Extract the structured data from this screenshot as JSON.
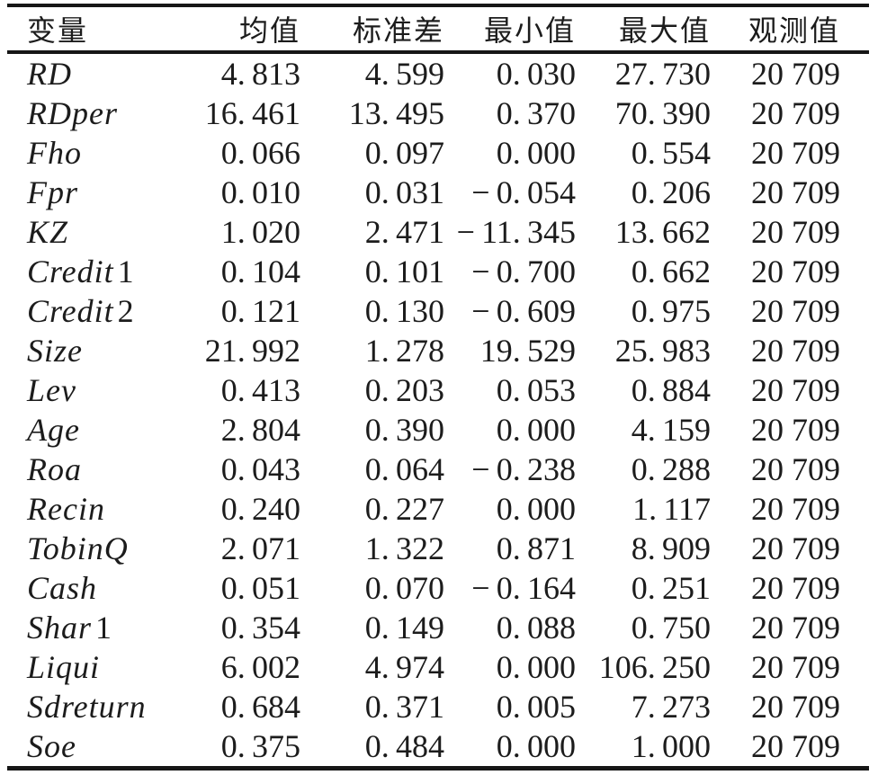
{
  "table": {
    "columns": [
      {
        "key": "variable",
        "label": "变量"
      },
      {
        "key": "mean",
        "label": "均值"
      },
      {
        "key": "std",
        "label": "标准差"
      },
      {
        "key": "min",
        "label": "最小值"
      },
      {
        "key": "max",
        "label": "最大值"
      },
      {
        "key": "obs",
        "label": "观测值"
      }
    ],
    "rows": [
      {
        "variable": "RD",
        "mean": "4.813",
        "std": "4.599",
        "min": "0.030",
        "max": "27.730",
        "obs": "20 709"
      },
      {
        "variable": "RDper",
        "mean": "16.461",
        "std": "13.495",
        "min": "0.370",
        "max": "70.390",
        "obs": "20 709"
      },
      {
        "variable": "Fho",
        "mean": "0.066",
        "std": "0.097",
        "min": "0.000",
        "max": "0.554",
        "obs": "20 709"
      },
      {
        "variable": "Fpr",
        "mean": "0.010",
        "std": "0.031",
        "min": "-0.054",
        "max": "0.206",
        "obs": "20 709"
      },
      {
        "variable": "KZ",
        "mean": "1.020",
        "std": "2.471",
        "min": "-11.345",
        "max": "13.662",
        "obs": "20 709"
      },
      {
        "variable": "Credit1",
        "mean": "0.104",
        "std": "0.101",
        "min": "-0.700",
        "max": "0.662",
        "obs": "20 709"
      },
      {
        "variable": "Credit2",
        "mean": "0.121",
        "std": "0.130",
        "min": "-0.609",
        "max": "0.975",
        "obs": "20 709"
      },
      {
        "variable": "Size",
        "mean": "21.992",
        "std": "1.278",
        "min": "19.529",
        "max": "25.983",
        "obs": "20 709"
      },
      {
        "variable": "Lev",
        "mean": "0.413",
        "std": "0.203",
        "min": "0.053",
        "max": "0.884",
        "obs": "20 709"
      },
      {
        "variable": "Age",
        "mean": "2.804",
        "std": "0.390",
        "min": "0.000",
        "max": "4.159",
        "obs": "20 709"
      },
      {
        "variable": "Roa",
        "mean": "0.043",
        "std": "0.064",
        "min": "-0.238",
        "max": "0.288",
        "obs": "20 709"
      },
      {
        "variable": "Recin",
        "mean": "0.240",
        "std": "0.227",
        "min": "0.000",
        "max": "1.117",
        "obs": "20 709"
      },
      {
        "variable": "TobinQ",
        "mean": "2.071",
        "std": "1.322",
        "min": "0.871",
        "max": "8.909",
        "obs": "20 709"
      },
      {
        "variable": "Cash",
        "mean": "0.051",
        "std": "0.070",
        "min": "-0.164",
        "max": "0.251",
        "obs": "20 709"
      },
      {
        "variable": "Shar1",
        "mean": "0.354",
        "std": "0.149",
        "min": "0.088",
        "max": "0.750",
        "obs": "20 709"
      },
      {
        "variable": "Liqui",
        "mean": "6.002",
        "std": "4.974",
        "min": "0.000",
        "max": "106.250",
        "obs": "20 709"
      },
      {
        "variable": "Sdreturn",
        "mean": "0.684",
        "std": "0.371",
        "min": "0.005",
        "max": "7.273",
        "obs": "20 709"
      },
      {
        "variable": "Soe",
        "mean": "0.375",
        "std": "0.484",
        "min": "0.000",
        "max": "1.000",
        "obs": "20 709"
      }
    ]
  },
  "style": {
    "background": "#ffffff",
    "text_color": "#1c1c1c",
    "rule_color": "#161616"
  }
}
